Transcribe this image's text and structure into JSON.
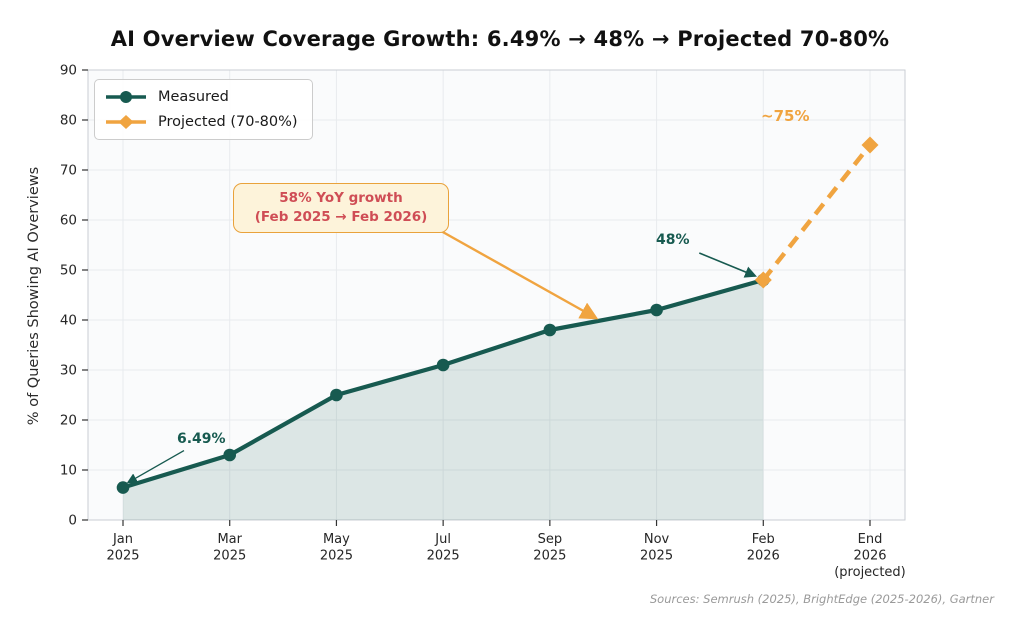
{
  "title": "AI Overview Coverage Growth: 6.49% → 48% → Projected 70-80%",
  "source_note": "Sources: Semrush (2025), BrightEdge (2025-2026), Gartner",
  "colors": {
    "measured": "#175a50",
    "projected": "#f0a440",
    "area_fill": "rgba(23,90,80,0.13)",
    "growth_text": "#cf4d55",
    "growth_box_bg": "#fdf3da",
    "growth_box_border": "#e9a23b",
    "plot_bg": "#fafbfc",
    "grid": "#e8ebee",
    "spine": "#c9ced3",
    "tick_text": "#262626",
    "source_text": "#9a9a9a"
  },
  "chart_data": {
    "type": "line",
    "title": "AI Overview Coverage Growth: 6.49% → 48% → Projected 70-80%",
    "xlabel": "",
    "ylabel": "% of Queries Showing AI Overviews",
    "ylim": [
      0,
      90
    ],
    "y_ticks": [
      0,
      10,
      20,
      30,
      40,
      50,
      60,
      70,
      80,
      90
    ],
    "grid": true,
    "legend_position": "upper left",
    "categories": [
      "Jan|2025",
      "Mar|2025",
      "May|2025",
      "Jul|2025",
      "Sep|2025",
      "Nov|2025",
      "Feb|2026",
      "End|2026|(projected)"
    ],
    "series": [
      {
        "name": "Measured",
        "marker": "circle",
        "dashed": false,
        "color": "#175a50",
        "values": [
          6.49,
          13,
          25,
          31,
          38,
          42,
          48,
          null
        ]
      },
      {
        "name": "Projected (70-80%)",
        "marker": "diamond",
        "dashed": true,
        "color": "#f0a440",
        "values": [
          null,
          null,
          null,
          null,
          null,
          null,
          48,
          75
        ]
      }
    ],
    "area_fill_under": "Measured",
    "annotations": {
      "first_point_label": "6.49%",
      "measured_end_label": "48%",
      "projected_end_label": "~75%",
      "growth_box_line1": "58% YoY growth",
      "growth_box_line2": "(Feb 2025 → Feb 2026)"
    }
  }
}
